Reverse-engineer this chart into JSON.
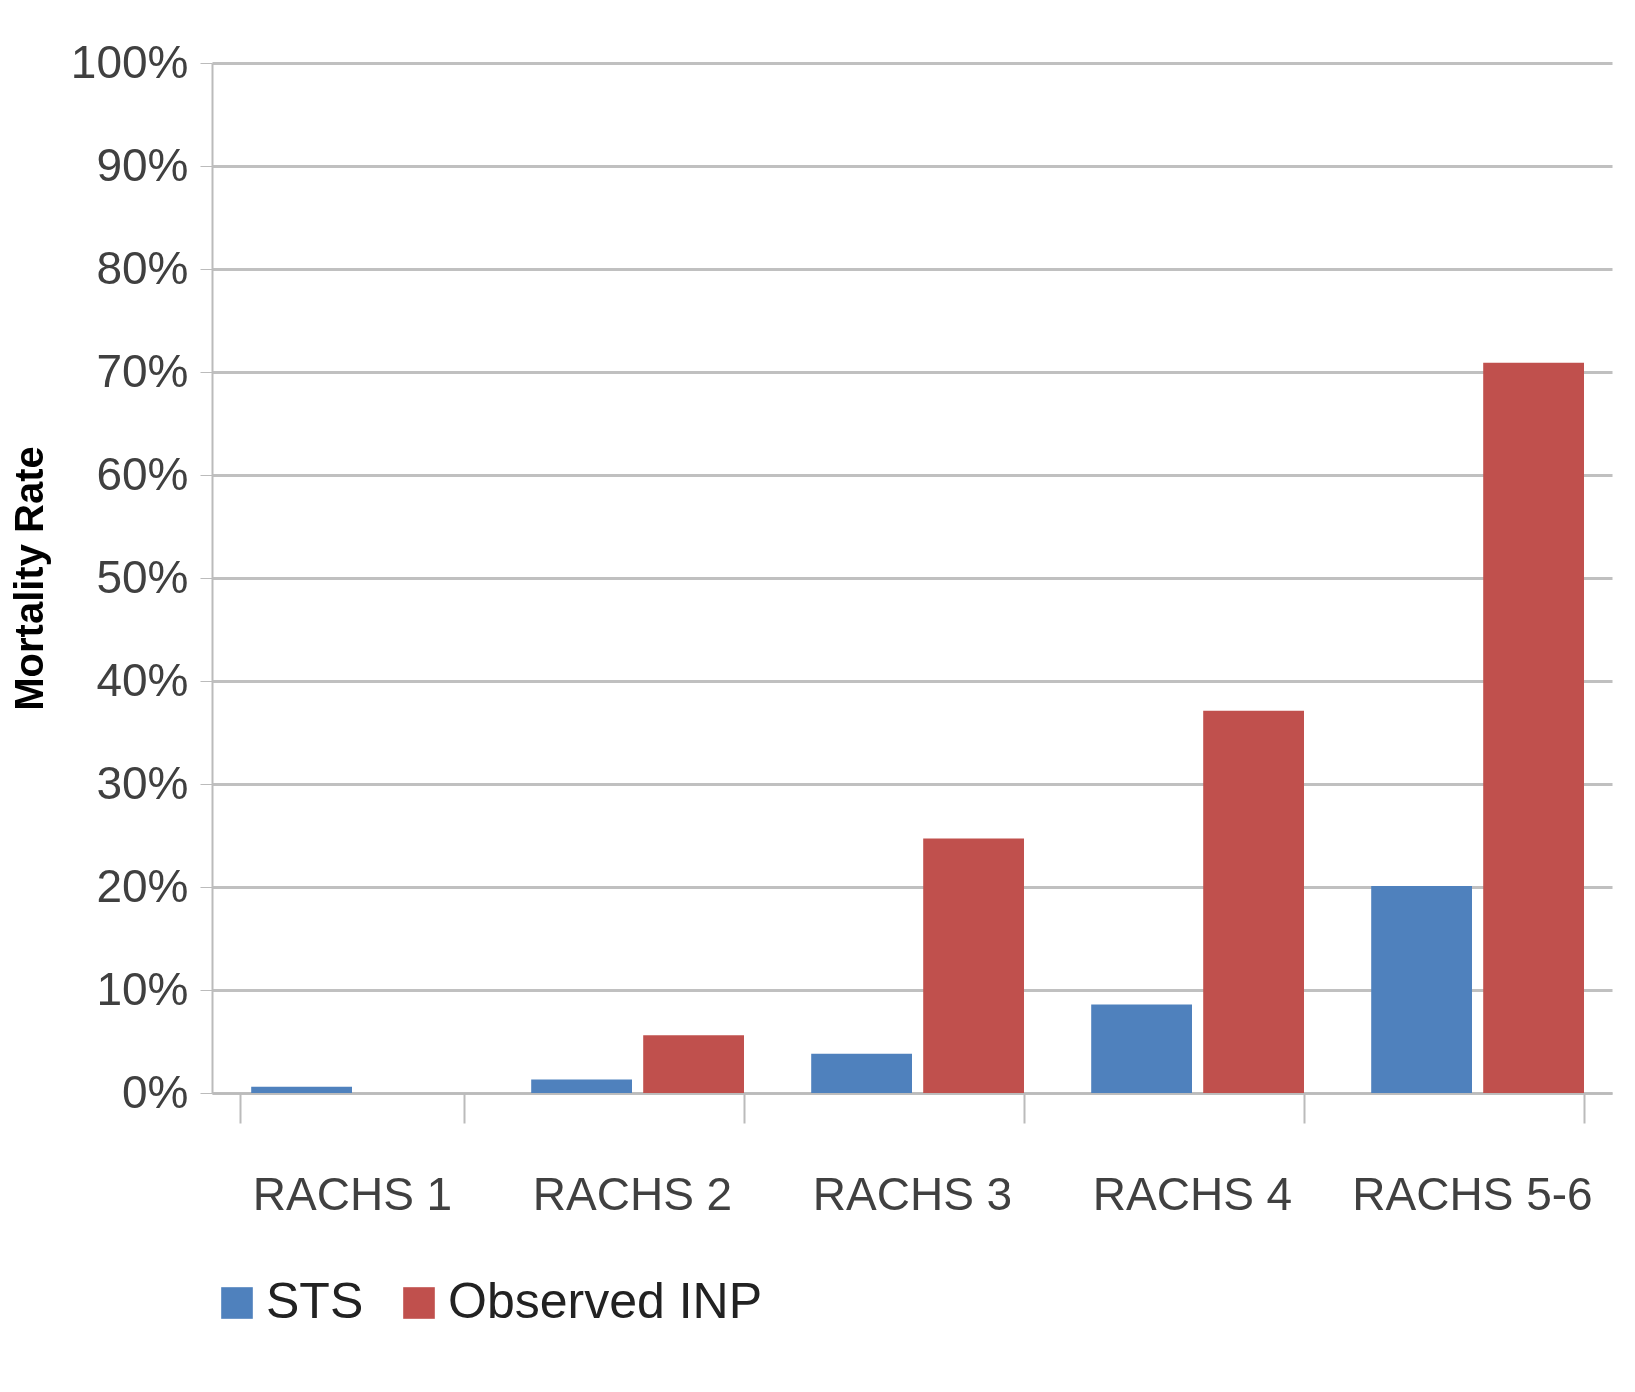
{
  "chart_data": {
    "type": "bar",
    "ylabel": "Mortality Rate",
    "categories": [
      "RACHS 1",
      "RACHS 2",
      "RACHS 3",
      "RACHS 4",
      "RACHS 5-6"
    ],
    "series": [
      {
        "name": "STS",
        "color": "#4f81bd",
        "values": [
          0.6,
          1.3,
          3.8,
          8.6,
          20.1
        ]
      },
      {
        "name": "Observed INP",
        "color": "#c0504d",
        "values": [
          0,
          5.6,
          24.7,
          37.1,
          70.9
        ]
      }
    ],
    "ylim": [
      0,
      100
    ],
    "yticks": [
      {
        "value": 0,
        "label": "0%"
      },
      {
        "value": 10,
        "label": "10%"
      },
      {
        "value": 20,
        "label": "20%"
      },
      {
        "value": 30,
        "label": "30%"
      },
      {
        "value": 40,
        "label": "40%"
      },
      {
        "value": 50,
        "label": "50%"
      },
      {
        "value": 60,
        "label": "60%"
      },
      {
        "value": 70,
        "label": "70%"
      },
      {
        "value": 80,
        "label": "80%"
      },
      {
        "value": 90,
        "label": "90%"
      },
      {
        "value": 100,
        "label": "100%"
      }
    ],
    "grid": "y",
    "legend": "bottom"
  }
}
